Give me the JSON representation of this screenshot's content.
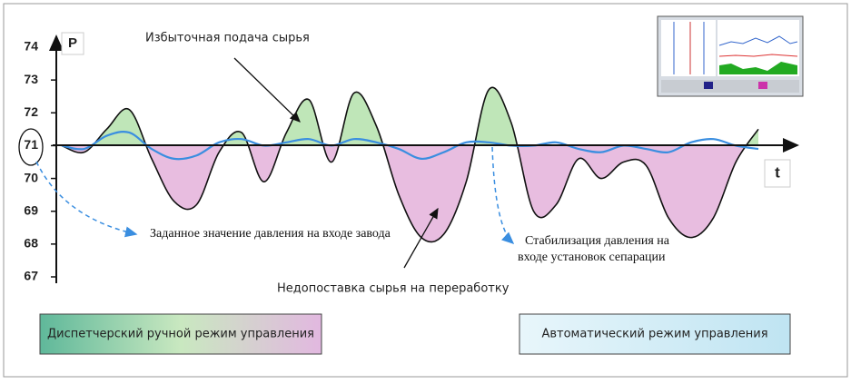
{
  "chart_data": {
    "type": "line",
    "y_label": "P",
    "x_label": "t",
    "ylim": [
      67,
      74
    ],
    "yticks": [
      67,
      68,
      69,
      70,
      71,
      72,
      73,
      74
    ],
    "setpoint": 71,
    "categories": [
      null,
      null,
      null,
      null,
      null,
      null,
      null,
      null,
      null,
      null,
      null,
      null,
      null,
      null,
      null,
      null,
      null,
      null,
      null,
      null,
      null,
      null,
      null,
      null,
      null,
      null,
      null,
      null,
      null,
      null,
      null,
      null
    ],
    "series": [
      {
        "name": "P",
        "color": "#111111",
        "values": [
          71.0,
          70.8,
          71.5,
          72.1,
          70.6,
          69.3,
          69.2,
          70.8,
          71.4,
          69.9,
          71.4,
          72.4,
          70.5,
          72.6,
          71.6,
          69.5,
          68.2,
          68.3,
          69.9,
          72.7,
          71.7,
          69.0,
          69.2,
          70.6,
          70.0,
          70.5,
          70.4,
          68.8,
          68.2,
          68.8,
          70.5,
          71.5
        ]
      },
      {
        "name": "P",
        "color": "#3a8ee0",
        "values": [
          71.0,
          70.9,
          71.3,
          71.4,
          70.9,
          70.6,
          70.7,
          71.1,
          71.2,
          71.0,
          71.1,
          71.2,
          71.0,
          71.2,
          71.1,
          70.9,
          70.6,
          70.8,
          71.1,
          71.1,
          71.0,
          71.0,
          71.1,
          70.9,
          70.8,
          71.0,
          70.9,
          70.8,
          71.1,
          71.2,
          71.0,
          70.9
        ]
      }
    ],
    "fill_above": "#bfe6b8",
    "fill_below": "#e8bde0",
    "annotations": {
      "excess": "Избыточная подача сырья",
      "setpoint_note": "Заданное значение давления на входе завода",
      "shortage": "Недопоставка сырья на переработку",
      "stabilization_1": "Стабилизация давления на",
      "stabilization_2": "входе установок сепарации",
      "manual_mode": "Диспетчерский ручной режим управления",
      "auto_mode": "Автоматический режим управления"
    }
  }
}
